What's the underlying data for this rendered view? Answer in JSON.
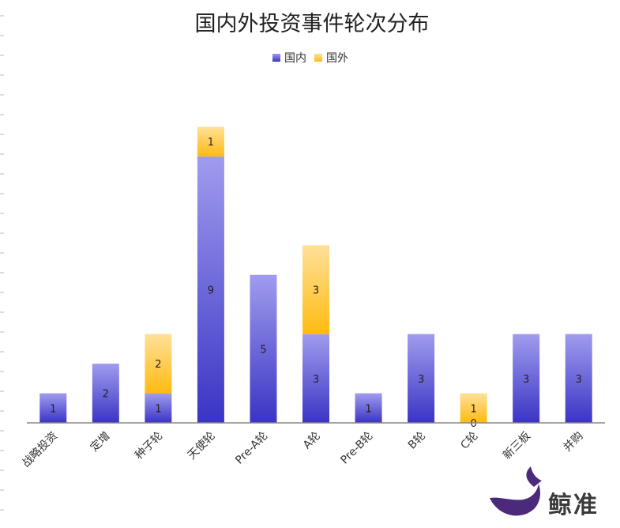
{
  "chart_data": {
    "type": "bar",
    "stacked": true,
    "title": "国内外投资事件轮次分布",
    "categories": [
      "战略投资",
      "定增",
      "种子轮",
      "天使轮",
      "Pre-A轮",
      "A轮",
      "Pre-B轮",
      "B轮",
      "C轮",
      "新三板",
      "并购"
    ],
    "series": [
      {
        "name": "国内",
        "values": [
          1,
          2,
          1,
          9,
          5,
          3,
          1,
          3,
          0,
          3,
          3
        ],
        "color": "#7272dc"
      },
      {
        "name": "国外",
        "values": [
          null,
          null,
          2,
          1,
          null,
          3,
          null,
          null,
          1,
          null,
          null
        ],
        "color": "#ffc94a"
      }
    ],
    "ylim": [
      0,
      10
    ],
    "grid": false,
    "legend_position": "top-center"
  },
  "brand": {
    "name": "鲸准",
    "icon": "whale-icon",
    "color": "#4b2a7b"
  }
}
